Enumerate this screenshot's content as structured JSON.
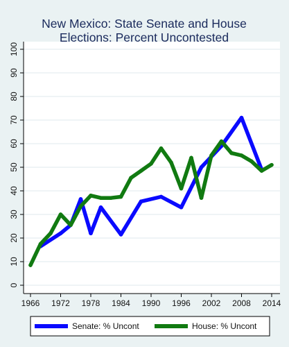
{
  "colors": {
    "background": "#eaf2f3",
    "plot_background": "#ffffff",
    "title": "#1a2a5c",
    "grid": "#dfe9ec",
    "senate": "#0a0aff",
    "house": "#117a11"
  },
  "chart_data": {
    "type": "line",
    "title_lines": [
      "New Mexico: State Senate and House",
      "Elections: Percent Uncontested"
    ],
    "xlabel": "",
    "ylabel": "",
    "xlim": [
      1966,
      2014
    ],
    "ylim": [
      0,
      100
    ],
    "x_ticks": [
      1966,
      1972,
      1978,
      1984,
      1990,
      1996,
      2002,
      2008,
      2014
    ],
    "y_ticks": [
      0,
      10,
      20,
      30,
      40,
      50,
      60,
      70,
      80,
      90,
      100
    ],
    "grid": true,
    "legend_position": "bottom",
    "series": [
      {
        "name": "Senate: % Uncont",
        "color": "#0a0aff",
        "x": [
          1968,
          1972,
          1974,
          1976,
          1978,
          1980,
          1984,
          1988,
          1992,
          1996,
          2000,
          2004,
          2008,
          2012
        ],
        "y": [
          16.5,
          22,
          25.5,
          36.5,
          22,
          33,
          21.5,
          35.5,
          37.5,
          33,
          50,
          59,
          71,
          49
        ]
      },
      {
        "name": "House: % Uncont",
        "color": "#117a11",
        "x": [
          1966,
          1968,
          1970,
          1972,
          1974,
          1976,
          1978,
          1980,
          1982,
          1984,
          1986,
          1988,
          1990,
          1992,
          1994,
          1996,
          1998,
          2000,
          2002,
          2004,
          2006,
          2008,
          2010,
          2012,
          2014
        ],
        "y": [
          8.5,
          17.5,
          22,
          30,
          25.5,
          33.5,
          38,
          37,
          37,
          37.5,
          45.5,
          48.5,
          51.5,
          58,
          52,
          41,
          54,
          37,
          55,
          61,
          56,
          55,
          52.5,
          48.5,
          51
        ]
      }
    ]
  }
}
